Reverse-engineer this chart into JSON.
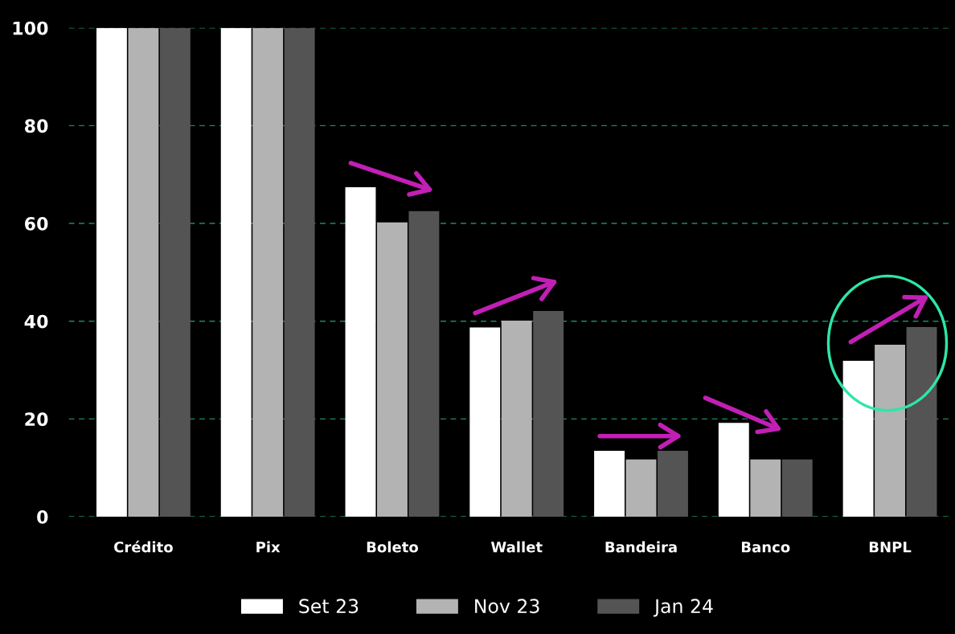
{
  "chart_data": {
    "type": "bar",
    "categories": [
      "Crédito",
      "Pix",
      "Boleto",
      "Wallet",
      "Bandeira",
      "Banco",
      "BNPL"
    ],
    "series": [
      {
        "name": "Set 23",
        "color": "#ffffff",
        "values": [
          100,
          100,
          67.4,
          38.7,
          13.5,
          19.2,
          31.9
        ]
      },
      {
        "name": "Nov 23",
        "color": "#b3b3b3",
        "values": [
          100,
          100,
          60.2,
          40.1,
          11.7,
          11.7,
          35.2
        ]
      },
      {
        "name": "Jan 24",
        "color": "#545454",
        "values": [
          100,
          100,
          62.5,
          42.1,
          13.5,
          11.7,
          38.8
        ]
      }
    ],
    "ylim": [
      0,
      100
    ],
    "yticks": [
      0,
      20,
      40,
      60,
      80,
      100
    ],
    "grid": "y",
    "legend": "bottom"
  }
}
